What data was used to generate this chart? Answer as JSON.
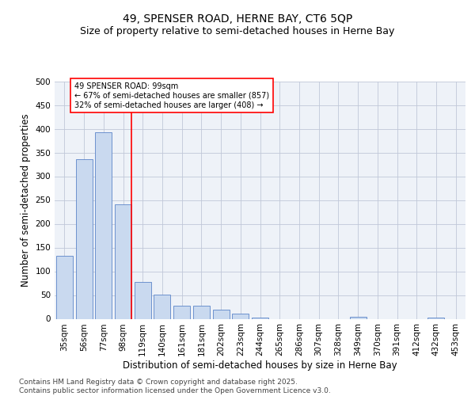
{
  "title": "49, SPENSER ROAD, HERNE BAY, CT6 5QP",
  "subtitle": "Size of property relative to semi-detached houses in Herne Bay",
  "xlabel": "Distribution of semi-detached houses by size in Herne Bay",
  "ylabel": "Number of semi-detached properties",
  "bin_labels": [
    "35sqm",
    "56sqm",
    "77sqm",
    "98sqm",
    "119sqm",
    "140sqm",
    "161sqm",
    "181sqm",
    "202sqm",
    "223sqm",
    "244sqm",
    "265sqm",
    "286sqm",
    "307sqm",
    "328sqm",
    "349sqm",
    "370sqm",
    "391sqm",
    "412sqm",
    "432sqm",
    "453sqm"
  ],
  "bar_values": [
    132,
    336,
    392,
    241,
    77,
    51,
    27,
    27,
    19,
    11,
    3,
    0,
    0,
    0,
    0,
    4,
    0,
    0,
    0,
    2,
    0
  ],
  "bar_color": "#c9d9ef",
  "bar_edge_color": "#5c85c8",
  "vline_x_index": 3,
  "vline_color": "red",
  "annotation_text": "49 SPENSER ROAD: 99sqm\n← 67% of semi-detached houses are smaller (857)\n32% of semi-detached houses are larger (408) →",
  "annotation_box_color": "white",
  "annotation_box_edge_color": "red",
  "ylim": [
    0,
    500
  ],
  "yticks": [
    0,
    50,
    100,
    150,
    200,
    250,
    300,
    350,
    400,
    450,
    500
  ],
  "grid_color": "#c0c8d8",
  "background_color": "#eef2f8",
  "footer_text": "Contains HM Land Registry data © Crown copyright and database right 2025.\nContains public sector information licensed under the Open Government Licence v3.0.",
  "title_fontsize": 10,
  "subtitle_fontsize": 9,
  "axis_label_fontsize": 8.5,
  "tick_fontsize": 7.5,
  "annotation_fontsize": 7,
  "footer_fontsize": 6.5
}
